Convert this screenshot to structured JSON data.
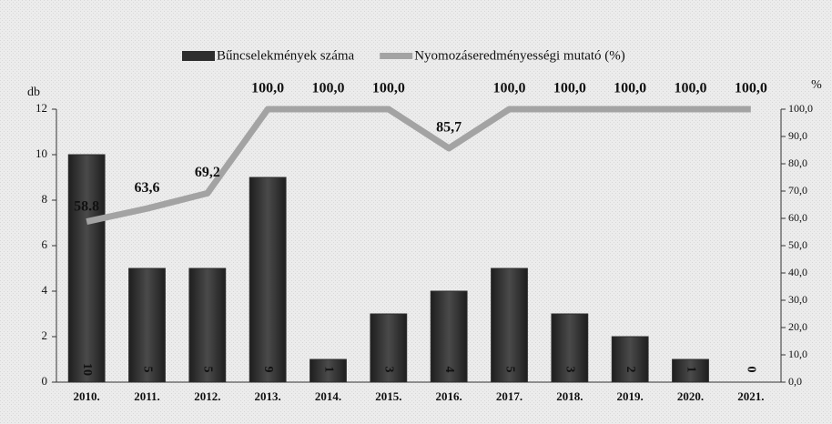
{
  "chart_data": {
    "type": "bar",
    "categories": [
      "2010.",
      "2011.",
      "2012.",
      "2013.",
      "2014.",
      "2015.",
      "2016.",
      "2017.",
      "2018.",
      "2019.",
      "2020.",
      "2021."
    ],
    "y_label": "db",
    "y2_label": "%",
    "series": [
      {
        "name": "Bűncselekmények száma",
        "type": "bar",
        "color": "#2e2e2e",
        "values": [
          10,
          5,
          5,
          9,
          1,
          3,
          4,
          5,
          3,
          2,
          1,
          0
        ]
      },
      {
        "name": "Nyomozáseredményességi mutató (%)",
        "type": "line",
        "axis": "y2",
        "color": "#a3a3a3",
        "values": [
          58.8,
          63.6,
          69.2,
          100,
          100,
          100,
          85.7,
          100,
          100,
          100,
          100,
          100
        ],
        "value_labels": [
          "58.8",
          "63,6",
          "69,2",
          "100,0",
          "100,0",
          "100,0",
          "85,7",
          "100,0",
          "100,0",
          "100,0",
          "100,0",
          "100,0"
        ]
      }
    ],
    "ylim": [
      0,
      12
    ],
    "yticks": [
      0,
      2,
      4,
      6,
      8,
      10,
      12
    ],
    "y2lim": [
      0,
      100
    ],
    "y2ticks": [
      {
        "value": 0,
        "label": "0,0"
      },
      {
        "value": 10,
        "label": "10,0"
      },
      {
        "value": 20,
        "label": "20,0"
      },
      {
        "value": 30,
        "label": "30,0"
      },
      {
        "value": 40,
        "label": "40,0"
      },
      {
        "value": 50,
        "label": "50,0"
      },
      {
        "value": 60,
        "label": "60,0"
      },
      {
        "value": 70,
        "label": "70,0"
      },
      {
        "value": 80,
        "label": "80,0"
      },
      {
        "value": 90,
        "label": "90,0"
      },
      {
        "value": 100,
        "label": "100,0"
      }
    ],
    "legend": "top"
  }
}
